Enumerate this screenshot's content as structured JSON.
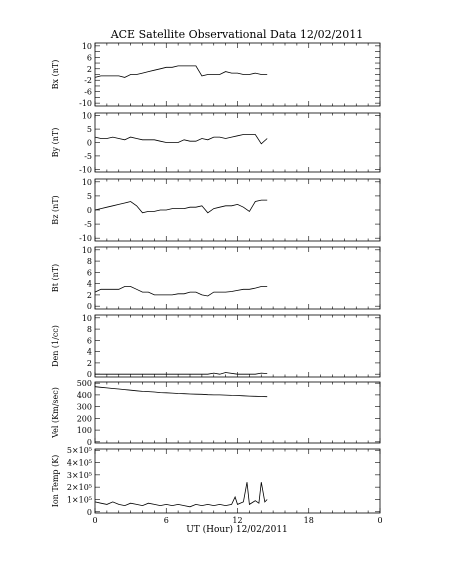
{
  "chart_data": {
    "type": "line",
    "title": "ACE Satellite Observational Data   12/02/2011",
    "xlabel": "UT (Hour)  12/02/2011",
    "xlim": [
      0,
      24
    ],
    "xticks": [
      "0",
      "6",
      "12",
      "18",
      "0"
    ],
    "panels": [
      {
        "name": "bx",
        "ylabel": "Bx (nT)",
        "ylim": [
          -11,
          11
        ],
        "ytick_values": [
          -10,
          -8,
          -6,
          -4,
          -2,
          0,
          2,
          4,
          6,
          8,
          10
        ],
        "ytick_labels": [
          "-10",
          "",
          "-6",
          "",
          "-2",
          "",
          "2",
          "",
          "6",
          "",
          "10"
        ],
        "series": [
          {
            "x": [
              0,
              0.5,
              1,
              1.5,
              2,
              2.5,
              3,
              3.5,
              4,
              4.5,
              5,
              5.5,
              6,
              6.5,
              7,
              7.5,
              8,
              8.5,
              9,
              9.5,
              10,
              10.5,
              11,
              11.5,
              12,
              12.5,
              13,
              13.5,
              14,
              14.5
            ],
            "y": [
              -1,
              -0.5,
              -0.5,
              -0.5,
              -0.5,
              -1,
              0,
              0,
              0.5,
              1,
              1.5,
              2,
              2.5,
              2.5,
              3,
              3,
              3,
              3,
              -0.5,
              0,
              0,
              0,
              1,
              0.5,
              0.5,
              0,
              0,
              0.5,
              0,
              0
            ]
          }
        ]
      },
      {
        "name": "by",
        "ylabel": "By (nT)",
        "ylim": [
          -11,
          11
        ],
        "ytick_values": [
          -10,
          -5,
          0,
          5,
          10
        ],
        "ytick_labels": [
          "-10",
          "-5",
          "0",
          "5",
          "10"
        ],
        "series": [
          {
            "x": [
              0,
              0.5,
              1,
              1.5,
              2,
              2.5,
              3,
              3.5,
              4,
              4.5,
              5,
              5.5,
              6,
              6.5,
              7,
              7.5,
              8,
              8.5,
              9,
              9.5,
              10,
              10.5,
              11,
              11.5,
              12,
              12.5,
              13,
              13.5,
              14,
              14.5
            ],
            "y": [
              2,
              1.5,
              1.5,
              2,
              1.5,
              1,
              2,
              1.5,
              1,
              1,
              1,
              0.5,
              0,
              0,
              0,
              1,
              0.5,
              0.5,
              1.5,
              1,
              2,
              2,
              1.5,
              2,
              2.5,
              3,
              3,
              3,
              -0.5,
              1.5
            ]
          }
        ]
      },
      {
        "name": "bz",
        "ylabel": "Bz (nT)",
        "ylim": [
          -11,
          11
        ],
        "ytick_values": [
          -10,
          -5,
          0,
          5,
          10
        ],
        "ytick_labels": [
          "-10",
          "-5",
          "0",
          "5",
          "10"
        ],
        "series": [
          {
            "x": [
              0,
              0.5,
              1,
              1.5,
              2,
              2.5,
              3,
              3.5,
              4,
              4.5,
              5,
              5.5,
              6,
              6.5,
              7,
              7.5,
              8,
              8.5,
              9,
              9.5,
              10,
              10.5,
              11,
              11.5,
              12,
              12.5,
              13,
              13.5,
              14,
              14.5
            ],
            "y": [
              0,
              0.5,
              1,
              1.5,
              2,
              2.5,
              3,
              1.5,
              -1,
              -0.5,
              -0.5,
              0,
              0,
              0.5,
              0.5,
              0.5,
              1,
              1,
              1.5,
              -1,
              0.5,
              1,
              1.5,
              1.5,
              2,
              1,
              -0.5,
              3,
              3.5,
              3.5
            ]
          }
        ]
      },
      {
        "name": "bt",
        "ylabel": "Bt (nT)",
        "ylim": [
          -0.5,
          10.5
        ],
        "ytick_values": [
          0,
          2,
          4,
          6,
          8,
          10
        ],
        "ytick_labels": [
          "0",
          "2",
          "4",
          "6",
          "8",
          "10"
        ],
        "series": [
          {
            "x": [
              0,
              0.5,
              1,
              1.5,
              2,
              2.5,
              3,
              3.5,
              4,
              4.5,
              5,
              5.5,
              6,
              6.5,
              7,
              7.5,
              8,
              8.5,
              9,
              9.5,
              10,
              10.5,
              11,
              11.5,
              12,
              12.5,
              13,
              13.5,
              14,
              14.5
            ],
            "y": [
              2.5,
              3,
              3,
              3,
              3,
              3.5,
              3.5,
              3,
              2.5,
              2.5,
              2,
              2,
              2,
              2,
              2.2,
              2.2,
              2.5,
              2.5,
              2,
              1.8,
              2.5,
              2.5,
              2.5,
              2.6,
              2.8,
              3,
              3,
              3.2,
              3.5,
              3.5
            ]
          }
        ]
      },
      {
        "name": "den",
        "ylabel": "Den (1/cc)",
        "ylim": [
          -0.5,
          10.5
        ],
        "ytick_values": [
          0,
          2,
          4,
          6,
          8,
          10
        ],
        "ytick_labels": [
          "0",
          "2",
          "4",
          "6",
          "8",
          "10"
        ],
        "series": [
          {
            "x": [
              0,
              2,
              4,
              6,
              8,
              9.5,
              10,
              10.5,
              11,
              12,
              13,
              13.5,
              14,
              14.5
            ],
            "y": [
              0,
              0,
              0,
              0,
              0,
              0,
              0.2,
              0,
              0.3,
              0,
              0,
              0,
              0.2,
              0.1
            ]
          }
        ]
      },
      {
        "name": "vel",
        "ylabel": "Vel (Km/sec)",
        "ylim": [
          -10,
          510
        ],
        "ytick_values": [
          0,
          100,
          200,
          300,
          400,
          500
        ],
        "ytick_labels": [
          "0",
          "100",
          "200",
          "300",
          "400",
          "500"
        ],
        "series": [
          {
            "x": [
              0,
              0.5,
              1,
              1.5,
              2,
              2.5,
              3,
              3.5,
              4,
              4.5,
              5,
              5.5,
              6,
              6.5,
              7,
              7.5,
              8,
              8.5,
              9,
              9.5,
              10,
              10.5,
              11,
              11.5,
              12,
              12.5,
              13,
              13.5,
              14,
              14.5
            ],
            "y": [
              470,
              465,
              460,
              455,
              450,
              445,
              440,
              435,
              430,
              428,
              425,
              420,
              418,
              415,
              412,
              410,
              408,
              406,
              405,
              402,
              400,
              400,
              398,
              396,
              395,
              392,
              390,
              388,
              386,
              385
            ]
          }
        ]
      },
      {
        "name": "temp",
        "ylabel": "Ion Temp (K)",
        "ylim": [
          -0.1,
          5.1
        ],
        "ytick_values": [
          0,
          1,
          2,
          3,
          4,
          5
        ],
        "ytick_labels": [
          "0",
          "1×10⁵",
          "2×10⁵",
          "3×10⁵",
          "4×10⁵",
          "5×10⁵"
        ],
        "series": [
          {
            "x": [
              0,
              0.5,
              1,
              1.5,
              2,
              2.5,
              3,
              3.5,
              4,
              4.5,
              5,
              5.5,
              6,
              6.5,
              7,
              7.5,
              8,
              8.5,
              9,
              9.5,
              10,
              10.5,
              11,
              11.5,
              11.8,
              12,
              12.5,
              12.8,
              13,
              13.5,
              13.8,
              14,
              14.3,
              14.5
            ],
            "y": [
              0.8,
              0.7,
              0.6,
              0.8,
              0.6,
              0.5,
              0.7,
              0.6,
              0.5,
              0.7,
              0.6,
              0.5,
              0.6,
              0.5,
              0.6,
              0.5,
              0.4,
              0.6,
              0.5,
              0.6,
              0.5,
              0.6,
              0.5,
              0.6,
              1.2,
              0.6,
              0.8,
              2.4,
              0.6,
              0.9,
              0.7,
              2.4,
              0.8,
              1.0
            ]
          }
        ]
      }
    ]
  }
}
